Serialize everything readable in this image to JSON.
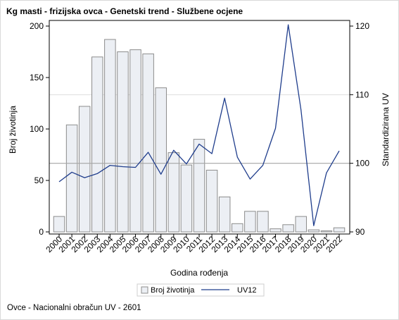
{
  "title": "Kg masti - frizijska ovca - Genetski trend - Službene ocjene",
  "footnote": "Ovce - Nacionalni obračun UV - 2601",
  "colors": {
    "bar_fill": "#eceff4",
    "bar_stroke": "#8c8c8c",
    "line": "#1f3d8c",
    "refline": "#a6a6a6",
    "grid": "#dedede",
    "axis": "#000000"
  },
  "chart_data": {
    "type": "bar",
    "xlabel": "Godina rođenja",
    "ylabel": "Broj životinja",
    "y2label": "Standardizirana UV",
    "ylim": [
      0,
      200
    ],
    "y2lim": [
      90,
      120.5
    ],
    "yticks": [
      0,
      50,
      100,
      150,
      200
    ],
    "y2ticks": [
      90,
      100,
      110,
      120
    ],
    "reference_line_y2": 100,
    "grid": "horizontal line at 110 only",
    "legend_position": "bottom-center",
    "categories": [
      "2000",
      "2001",
      "2002",
      "2003",
      "2004",
      "2005",
      "2006",
      "2007",
      "2008",
      "2009",
      "2010",
      "2011",
      "2012",
      "2013",
      "2014",
      "2015",
      "2016",
      "2017",
      "2018",
      "2019",
      "2020",
      "2021",
      "2022"
    ],
    "series": [
      {
        "name": "Broj životinja",
        "axis": "left",
        "type": "bar",
        "values": [
          15,
          104,
          122,
          170,
          187,
          175,
          177,
          173,
          140,
          77,
          65,
          90,
          60,
          34,
          8,
          20,
          20,
          3,
          7,
          15,
          2,
          1,
          4
        ]
      },
      {
        "name": "UV12",
        "axis": "right",
        "type": "line",
        "values": [
          97.3,
          98.7,
          97.9,
          98.5,
          99.7,
          99.5,
          99.4,
          101.6,
          98.4,
          101.9,
          99.9,
          102.8,
          101.4,
          109.5,
          100.9,
          97.7,
          99.7,
          105.1,
          120.2,
          107.8,
          90.9,
          98.6,
          101.8
        ]
      }
    ]
  }
}
